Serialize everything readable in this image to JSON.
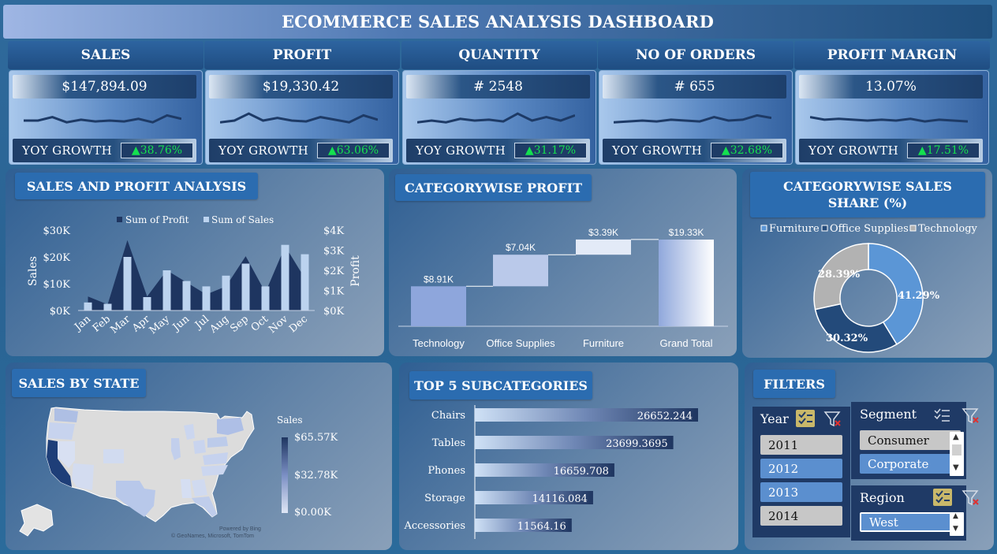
{
  "title": "ECOMMERCE SALES ANALYSIS DASHBOARD",
  "kpis": [
    {
      "label": "SALES",
      "value": "$147,894.09",
      "yoy_label": "YOY GROWTH",
      "yoy": "▲38.76%",
      "spark": [
        0.5,
        0.5,
        0.3,
        0.6,
        0.45,
        0.55,
        0.5,
        0.55,
        0.4,
        0.6,
        0.2,
        0.4
      ]
    },
    {
      "label": "PROFIT",
      "value": "$19,330.42",
      "yoy_label": "YOY GROWTH",
      "yoy": "▲63.06%",
      "spark": [
        0.6,
        0.5,
        0.1,
        0.5,
        0.35,
        0.5,
        0.55,
        0.3,
        0.45,
        0.6,
        0.2,
        0.45
      ]
    },
    {
      "label": "QUANTITY",
      "value": "# 2548",
      "yoy_label": "YOY GROWTH",
      "yoy": "▲31.17%",
      "spark": [
        0.6,
        0.5,
        0.6,
        0.4,
        0.5,
        0.45,
        0.55,
        0.1,
        0.5,
        0.3,
        0.5,
        0.2
      ]
    },
    {
      "label": "NO OF ORDERS",
      "value": "# 655",
      "yoy_label": "YOY GROWTH",
      "yoy": "▲32.68%",
      "spark": [
        0.6,
        0.55,
        0.5,
        0.55,
        0.45,
        0.5,
        0.55,
        0.3,
        0.5,
        0.45,
        0.2,
        0.35
      ]
    },
    {
      "label": "PROFIT MARGIN",
      "value": "13.07%",
      "yoy_label": "YOY GROWTH",
      "yoy": "▲17.51%",
      "spark": [
        0.3,
        0.45,
        0.4,
        0.45,
        0.5,
        0.45,
        0.5,
        0.4,
        0.55,
        0.45,
        0.5,
        0.55
      ]
    }
  ],
  "panels": {
    "sales_profit": "SALES AND PROFIT ANALYSIS",
    "category_profit": "CATEGORYWISE PROFIT",
    "category_share": "CATEGORYWISE SALES SHARE (%)",
    "sales_by_state": "SALES BY STATE",
    "top5": "TOP 5 SUBCATEGORIES",
    "filters": "FILTERS"
  },
  "map": {
    "legend_title": "Sales",
    "legend_labels": [
      "$65.57K",
      "$32.78K",
      "$0.00K"
    ],
    "credit1": "Powered by Bing",
    "credit2": "© GeoNames, Microsoft, TomTom"
  },
  "filters": {
    "year_label": "Year",
    "years": [
      {
        "label": "2011",
        "selected": false
      },
      {
        "label": "2012",
        "selected": true
      },
      {
        "label": "2013",
        "selected": true
      },
      {
        "label": "2014",
        "selected": false
      }
    ],
    "segment_label": "Segment",
    "segments": [
      {
        "label": "Consumer",
        "selected": false
      },
      {
        "label": "Corporate",
        "selected": true
      }
    ],
    "region_label": "Region",
    "regions": [
      {
        "label": "West",
        "selected": true
      }
    ]
  },
  "colors": {
    "profit": "#1e3560",
    "sales": "#bcd3ef",
    "donut_furniture": "#5b96d6",
    "donut_office": "#234a7a",
    "donut_tech": "#b2b2b2",
    "yoy_green": "#14e04f"
  },
  "chart_data": [
    {
      "id": "sales_profit",
      "type": "bar",
      "categories": [
        "Jan",
        "Feb",
        "Mar",
        "Apr",
        "May",
        "Jun",
        "Jul",
        "Aug",
        "Sep",
        "Oct",
        "Nov",
        "Dec"
      ],
      "series": [
        {
          "name": "Sum of Profit",
          "type": "area",
          "axis": "right",
          "values": [
            700,
            300,
            3500,
            700,
            2000,
            1400,
            800,
            1200,
            2700,
            900,
            3200,
            1600
          ]
        },
        {
          "name": "Sum of Sales",
          "type": "bar",
          "axis": "left",
          "values": [
            3000,
            2500,
            20000,
            5000,
            15000,
            11000,
            9000,
            13000,
            17500,
            9000,
            24500,
            21000
          ]
        }
      ],
      "xlabel": "",
      "ylabel": "Sales",
      "y2label": "Profit",
      "ylim": [
        0,
        30000
      ],
      "y2lim": [
        0,
        4000
      ],
      "yticks": [
        "$0K",
        "$10K",
        "$20K",
        "$30K"
      ],
      "y2ticks": [
        "$0K",
        "$1K",
        "$2K",
        "$3K",
        "$4K"
      ],
      "legend": "top"
    },
    {
      "id": "category_profit",
      "type": "bar",
      "subtype": "waterfall",
      "categories": [
        "Technology",
        "Office Supplies",
        "Furniture",
        "Grand Total"
      ],
      "values": [
        8.91,
        7.04,
        3.39,
        19.33
      ],
      "labels": [
        "$8.91K",
        "$7.04K",
        "$3.39K",
        "$19.33K"
      ],
      "ylim": [
        0,
        21
      ]
    },
    {
      "id": "category_share",
      "type": "pie",
      "subtype": "donut",
      "categories": [
        "Furniture",
        "Office Supplies",
        "Technology"
      ],
      "values": [
        41.29,
        30.32,
        28.39
      ],
      "labels": [
        "41.29%",
        "30.32%",
        "28.39%"
      ],
      "legend": "top"
    },
    {
      "id": "top5_subcategories",
      "type": "bar",
      "orientation": "horizontal",
      "categories": [
        "Chairs",
        "Tables",
        "Phones",
        "Storage",
        "Accessories"
      ],
      "values": [
        26652.244,
        23699.3695,
        16659.708,
        14116.084,
        11564.16
      ],
      "labels": [
        "26652.244",
        "23699.3695",
        "16659.708",
        "14116.084",
        "11564.16"
      ]
    }
  ]
}
